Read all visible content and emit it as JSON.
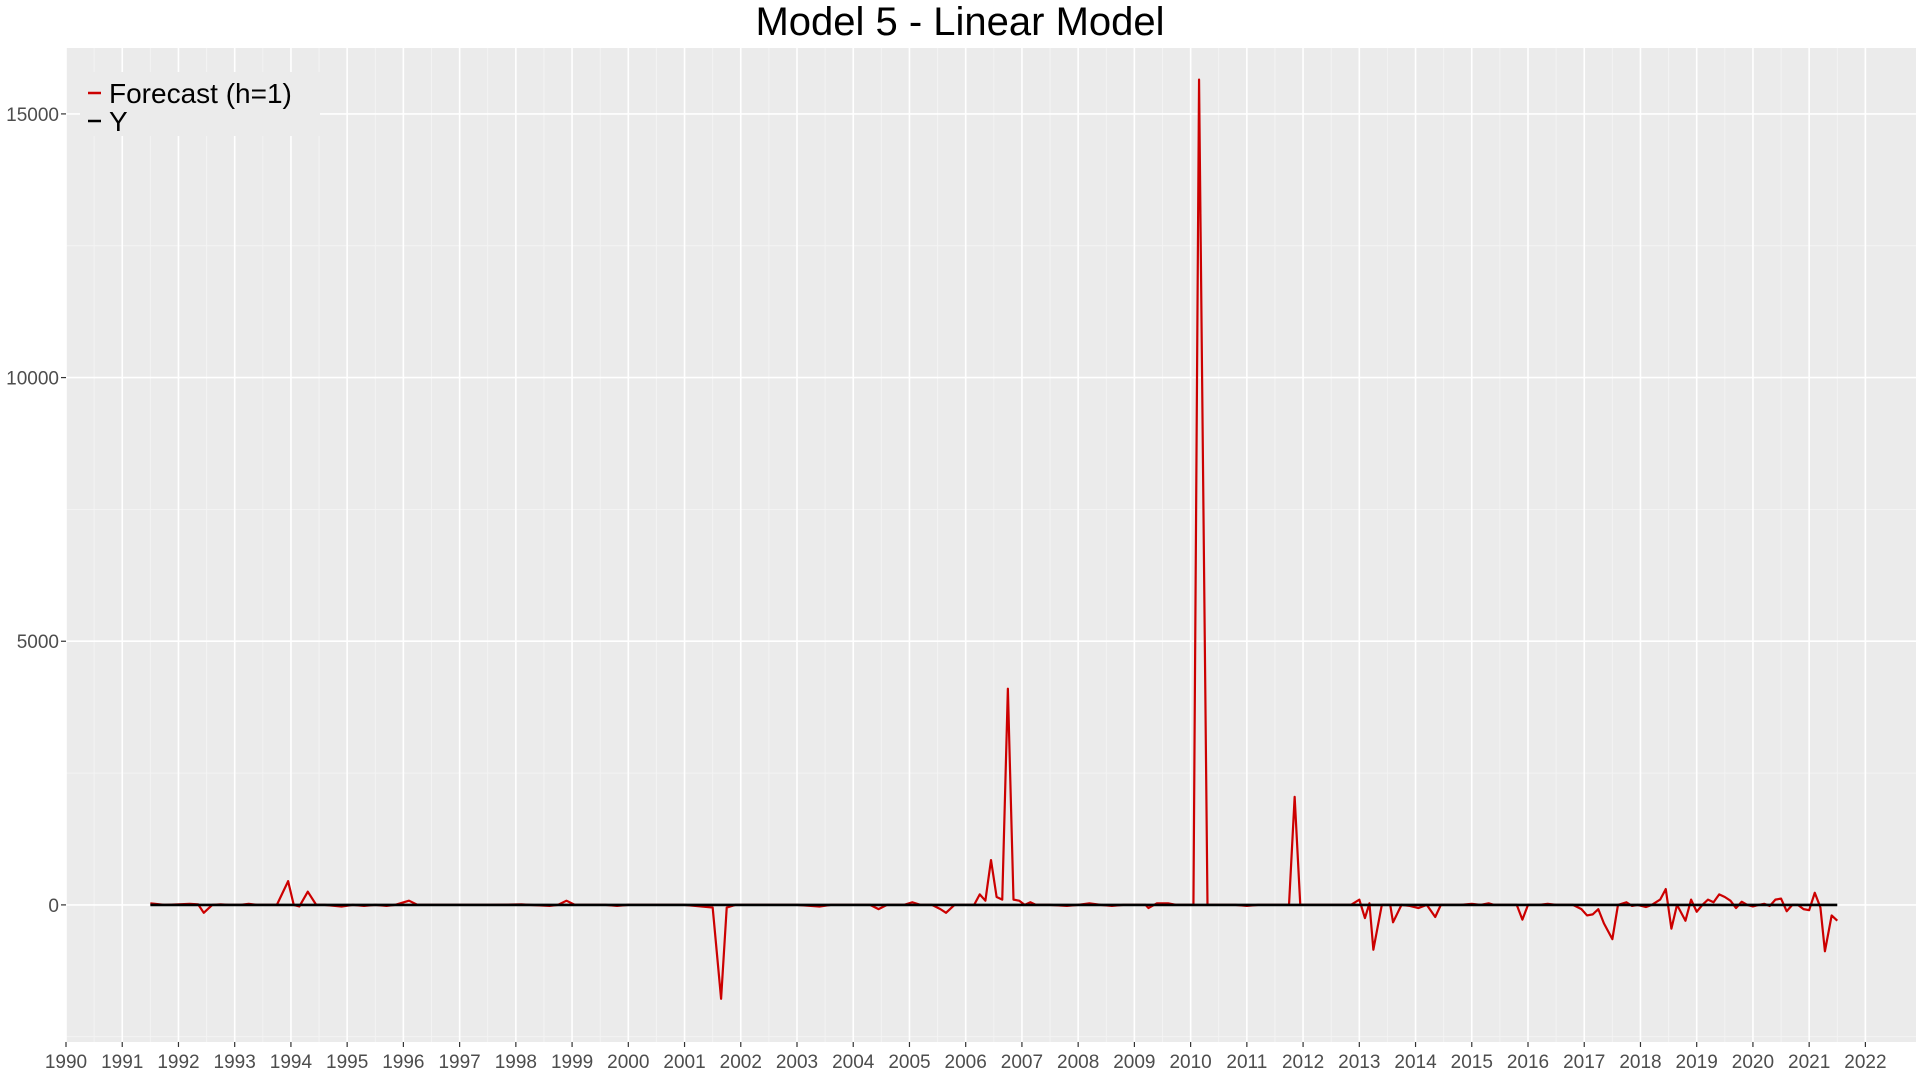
{
  "chart_data": {
    "type": "line",
    "title": "Model 5 - Linear Model",
    "xlabel": "",
    "ylabel": "",
    "xlim": [
      1990,
      2022.9
    ],
    "ylim": [
      -2600,
      16250
    ],
    "x_ticks": [
      1990,
      1991,
      1992,
      1993,
      1994,
      1995,
      1996,
      1997,
      1998,
      1999,
      2000,
      2001,
      2002,
      2003,
      2004,
      2005,
      2006,
      2007,
      2008,
      2009,
      2010,
      2011,
      2012,
      2013,
      2014,
      2015,
      2016,
      2017,
      2018,
      2019,
      2020,
      2021,
      2022
    ],
    "y_ticks": [
      0,
      5000,
      10000,
      15000
    ],
    "grid": true,
    "legend_position": "top-left",
    "series": [
      {
        "name": "Forecast (h=1)",
        "color": "#cc0000",
        "points": [
          [
            1991.5,
            30
          ],
          [
            1991.75,
            0
          ],
          [
            1992.0,
            10
          ],
          [
            1992.2,
            20
          ],
          [
            1992.35,
            10
          ],
          [
            1992.45,
            -150
          ],
          [
            1992.6,
            0
          ],
          [
            1992.75,
            10
          ],
          [
            1992.9,
            0
          ],
          [
            1993.1,
            0
          ],
          [
            1993.25,
            20
          ],
          [
            1993.4,
            0
          ],
          [
            1993.6,
            0
          ],
          [
            1993.75,
            0
          ],
          [
            1993.95,
            450
          ],
          [
            1994.05,
            0
          ],
          [
            1994.15,
            -30
          ],
          [
            1994.3,
            250
          ],
          [
            1994.45,
            0
          ],
          [
            1994.6,
            0
          ],
          [
            1994.9,
            -30
          ],
          [
            1995.1,
            0
          ],
          [
            1995.3,
            -20
          ],
          [
            1995.5,
            0
          ],
          [
            1995.7,
            -20
          ],
          [
            1995.85,
            0
          ],
          [
            1996.1,
            80
          ],
          [
            1996.25,
            0
          ],
          [
            1996.6,
            0
          ],
          [
            1997.0,
            0
          ],
          [
            1997.5,
            0
          ],
          [
            1998.1,
            10
          ],
          [
            1998.25,
            0
          ],
          [
            1998.6,
            -20
          ],
          [
            1998.75,
            0
          ],
          [
            1998.9,
            80
          ],
          [
            1999.05,
            0
          ],
          [
            1999.6,
            0
          ],
          [
            1999.8,
            -20
          ],
          [
            2000.0,
            0
          ],
          [
            2000.5,
            0
          ],
          [
            2001.0,
            0
          ],
          [
            2001.5,
            -50
          ],
          [
            2001.65,
            -1780
          ],
          [
            2001.75,
            -50
          ],
          [
            2001.9,
            0
          ],
          [
            2002.5,
            0
          ],
          [
            2003.0,
            0
          ],
          [
            2003.4,
            -30
          ],
          [
            2003.6,
            0
          ],
          [
            2004.0,
            0
          ],
          [
            2004.3,
            0
          ],
          [
            2004.45,
            -80
          ],
          [
            2004.6,
            0
          ],
          [
            2004.9,
            0
          ],
          [
            2005.05,
            50
          ],
          [
            2005.2,
            0
          ],
          [
            2005.4,
            0
          ],
          [
            2005.55,
            -80
          ],
          [
            2005.65,
            -150
          ],
          [
            2005.8,
            0
          ],
          [
            2006.0,
            0
          ],
          [
            2006.15,
            0
          ],
          [
            2006.25,
            200
          ],
          [
            2006.35,
            80
          ],
          [
            2006.45,
            850
          ],
          [
            2006.55,
            150
          ],
          [
            2006.65,
            100
          ],
          [
            2006.75,
            4100
          ],
          [
            2006.85,
            100
          ],
          [
            2006.95,
            80
          ],
          [
            2007.05,
            0
          ],
          [
            2007.15,
            50
          ],
          [
            2007.25,
            0
          ],
          [
            2007.5,
            0
          ],
          [
            2007.8,
            -20
          ],
          [
            2008.0,
            0
          ],
          [
            2008.2,
            30
          ],
          [
            2008.4,
            0
          ],
          [
            2008.6,
            -20
          ],
          [
            2008.8,
            0
          ],
          [
            2009.0,
            0
          ],
          [
            2009.2,
            0
          ],
          [
            2009.25,
            -60
          ],
          [
            2009.4,
            30
          ],
          [
            2009.6,
            30
          ],
          [
            2009.75,
            0
          ],
          [
            2009.9,
            0
          ],
          [
            2010.05,
            0
          ],
          [
            2010.15,
            15650
          ],
          [
            2010.3,
            0
          ],
          [
            2010.5,
            0
          ],
          [
            2010.8,
            0
          ],
          [
            2011.0,
            -20
          ],
          [
            2011.2,
            0
          ],
          [
            2011.5,
            0
          ],
          [
            2011.75,
            0
          ],
          [
            2011.85,
            2050
          ],
          [
            2011.95,
            0
          ],
          [
            2012.2,
            0
          ],
          [
            2012.5,
            0
          ],
          [
            2012.85,
            0
          ],
          [
            2013.0,
            100
          ],
          [
            2013.1,
            -250
          ],
          [
            2013.18,
            30
          ],
          [
            2013.25,
            -850
          ],
          [
            2013.4,
            0
          ],
          [
            2013.55,
            0
          ],
          [
            2013.6,
            -330
          ],
          [
            2013.75,
            0
          ],
          [
            2013.9,
            -20
          ],
          [
            2014.05,
            -60
          ],
          [
            2014.2,
            0
          ],
          [
            2014.35,
            -230
          ],
          [
            2014.45,
            0
          ],
          [
            2014.6,
            0
          ],
          [
            2014.8,
            0
          ],
          [
            2015.0,
            20
          ],
          [
            2015.15,
            0
          ],
          [
            2015.3,
            30
          ],
          [
            2015.4,
            0
          ],
          [
            2015.6,
            0
          ],
          [
            2015.8,
            0
          ],
          [
            2015.9,
            -280
          ],
          [
            2016.0,
            0
          ],
          [
            2016.2,
            0
          ],
          [
            2016.35,
            20
          ],
          [
            2016.5,
            0
          ],
          [
            2016.8,
            0
          ],
          [
            2016.95,
            -80
          ],
          [
            2017.05,
            -200
          ],
          [
            2017.15,
            -180
          ],
          [
            2017.25,
            -80
          ],
          [
            2017.35,
            -350
          ],
          [
            2017.5,
            -650
          ],
          [
            2017.6,
            0
          ],
          [
            2017.75,
            50
          ],
          [
            2017.85,
            -20
          ],
          [
            2017.95,
            0
          ],
          [
            2018.1,
            -40
          ],
          [
            2018.2,
            0
          ],
          [
            2018.35,
            100
          ],
          [
            2018.45,
            300
          ],
          [
            2018.55,
            -450
          ],
          [
            2018.65,
            0
          ],
          [
            2018.8,
            -300
          ],
          [
            2018.9,
            100
          ],
          [
            2019.0,
            -130
          ],
          [
            2019.1,
            0
          ],
          [
            2019.2,
            100
          ],
          [
            2019.3,
            50
          ],
          [
            2019.4,
            200
          ],
          [
            2019.5,
            150
          ],
          [
            2019.6,
            80
          ],
          [
            2019.7,
            -60
          ],
          [
            2019.8,
            60
          ],
          [
            2019.9,
            0
          ],
          [
            2020.0,
            -30
          ],
          [
            2020.1,
            0
          ],
          [
            2020.2,
            20
          ],
          [
            2020.3,
            -20
          ],
          [
            2020.4,
            100
          ],
          [
            2020.5,
            120
          ],
          [
            2020.6,
            -120
          ],
          [
            2020.7,
            0
          ],
          [
            2020.8,
            0
          ],
          [
            2020.9,
            -80
          ],
          [
            2021.0,
            -100
          ],
          [
            2021.1,
            230
          ],
          [
            2021.2,
            -50
          ],
          [
            2021.28,
            -880
          ],
          [
            2021.4,
            -200
          ],
          [
            2021.5,
            -300
          ]
        ]
      },
      {
        "name": "Y",
        "color": "#000000",
        "points": [
          [
            1991.5,
            0
          ],
          [
            2021.5,
            0
          ]
        ]
      }
    ]
  }
}
